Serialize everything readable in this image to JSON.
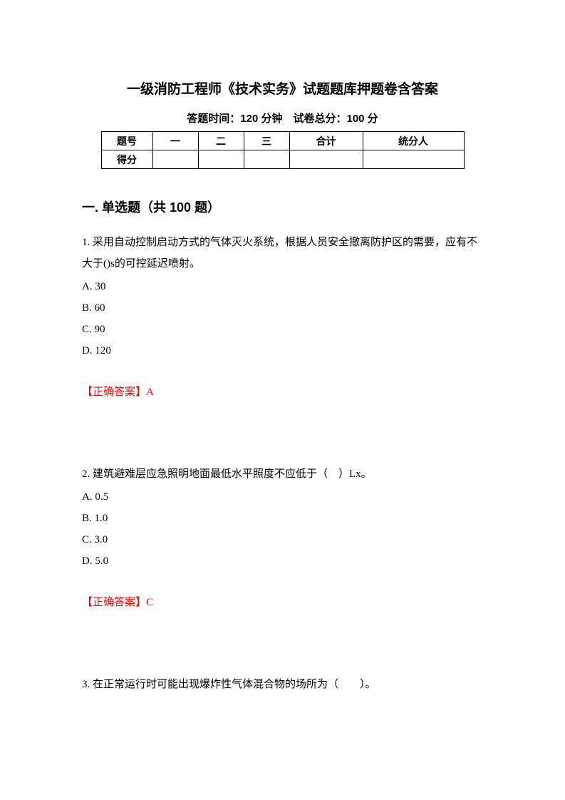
{
  "header": {
    "title": "一级消防工程师《技术实务》试题题库押题卷含答案",
    "subtitle": "答题时间：120 分钟　试卷总分：100 分"
  },
  "score_table": {
    "row1": [
      "题号",
      "一",
      "二",
      "三",
      "合计",
      "统分人"
    ],
    "row2": [
      "得分",
      "",
      "",
      "",
      "",
      ""
    ]
  },
  "section": {
    "heading": "一. 单选题（共 100 题）"
  },
  "questions": [
    {
      "text": "1. 采用自动控制启动方式的气体灭火系统，根据人员安全撤离防护区的需要，应有不大于()s的可控延迟喷射。",
      "options": [
        "A. 30",
        "B. 60",
        "C. 90",
        "D. 120"
      ],
      "answer_label": "【正确答案】",
      "answer_value": "A"
    },
    {
      "text": "2. 建筑避难层应急照明地面最低水平照度不应低于（　）Lx。",
      "options": [
        "A. 0.5",
        "B. 1.0",
        "C. 3.0",
        "D. 5.0"
      ],
      "answer_label": "【正确答案】",
      "answer_value": "C"
    },
    {
      "text": "3. 在正常运行时可能出现爆炸性气体混合物的场所为（　　）。",
      "options": [],
      "answer_label": "",
      "answer_value": ""
    }
  ]
}
